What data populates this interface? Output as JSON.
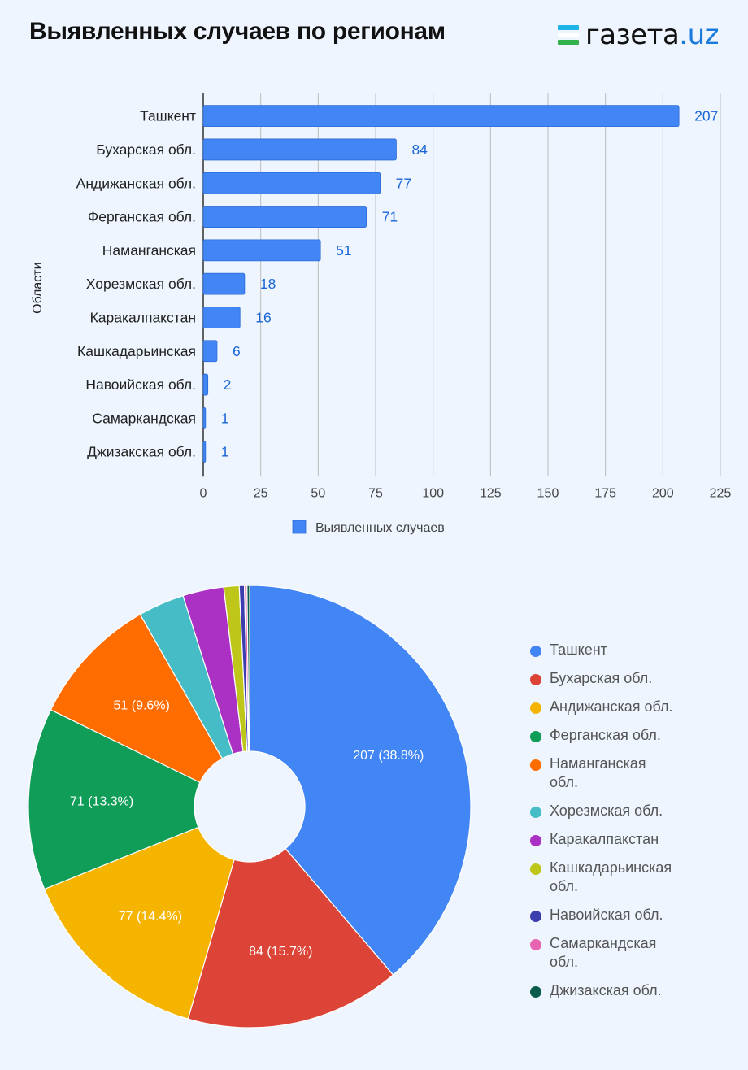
{
  "header": {
    "title": "Выявленных случаев по регионам",
    "logo_main": "газета",
    "logo_dot": ".",
    "logo_suffix": "uz"
  },
  "chart_data": [
    {
      "type": "bar",
      "orientation": "horizontal",
      "categories": [
        "Ташкент",
        "Бухарская обл.",
        "Андижанская обл.",
        "Ферганская обл.",
        "Наманганская",
        "Хорезмская обл.",
        "Каракалпакстан",
        "Кашкадарьинская",
        "Навоийская обл.",
        "Самаркандская",
        "Джизакская обл."
      ],
      "series": [
        {
          "name": "Выявленных случаев",
          "values": [
            207,
            84,
            77,
            71,
            51,
            18,
            16,
            6,
            2,
            1,
            1
          ],
          "color": "#4285f4"
        }
      ],
      "ylabel": "Области",
      "xlim": [
        0,
        225
      ],
      "xticks": [
        0,
        25,
        50,
        75,
        100,
        125,
        150,
        175,
        200,
        225
      ],
      "grid": true,
      "legend_position": "bottom",
      "data_label_color": "#1a66d6"
    },
    {
      "type": "pie",
      "donut": true,
      "labels": [
        "Ташкент",
        "Бухарская обл.",
        "Андижанская обл.",
        "Ферганская обл.",
        "Наманганская обл.",
        "Хорезмская обл.",
        "Каракалпакстан",
        "Кашкадарьинская обл.",
        "Навоийская обл.",
        "Самаркандская обл.",
        "Джизакская обл."
      ],
      "legend_lines": [
        [
          "Ташкент"
        ],
        [
          "Бухарская обл."
        ],
        [
          "Андижанская обл."
        ],
        [
          "Ферганская обл."
        ],
        [
          "Наманганская",
          "обл."
        ],
        [
          "Хорезмская обл."
        ],
        [
          "Каракалпакстан"
        ],
        [
          "Кашкадарьинская",
          "обл."
        ],
        [
          "Навоийская обл."
        ],
        [
          "Самаркандская",
          "обл."
        ],
        [
          "Джизакская обл."
        ]
      ],
      "values": [
        207,
        84,
        77,
        71,
        51,
        18,
        16,
        6,
        2,
        1,
        1
      ],
      "slice_labels": [
        "207 (38.8%)",
        "84 (15.7%)",
        "77 (14.4%)",
        "71 (13.3%)",
        "51 (9.6%)",
        "",
        "",
        "",
        "",
        "",
        ""
      ],
      "colors": [
        "#4285f4",
        "#db4437",
        "#f4b400",
        "#0f9d58",
        "#ff6d01",
        "#46bdc6",
        "#ab30c4",
        "#bfc61a",
        "#3b3eac",
        "#e964b0",
        "#0a5c4a"
      ],
      "legend_position": "right"
    }
  ]
}
